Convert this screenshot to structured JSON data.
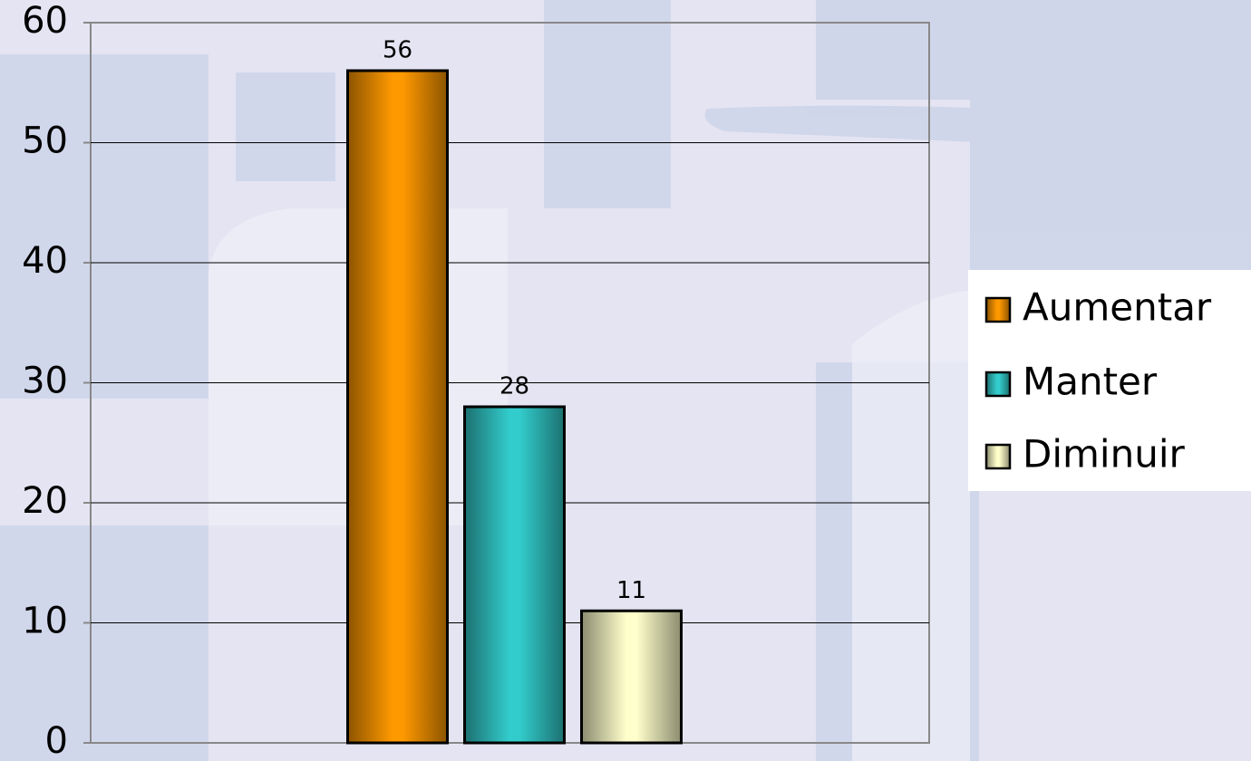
{
  "chart_data": {
    "type": "bar",
    "categories": [
      null
    ],
    "series": [
      {
        "name": "Aumentar",
        "color": "#ff9900",
        "values": [
          56
        ]
      },
      {
        "name": "Manter",
        "color": "#33cccc",
        "values": [
          28
        ]
      },
      {
        "name": "Diminuir",
        "color": "#ffffcc",
        "values": [
          11
        ]
      }
    ],
    "ylim": [
      0,
      60
    ],
    "yticks": [
      0,
      10,
      20,
      30,
      40,
      50,
      60
    ],
    "grid": true,
    "legend": "right"
  }
}
